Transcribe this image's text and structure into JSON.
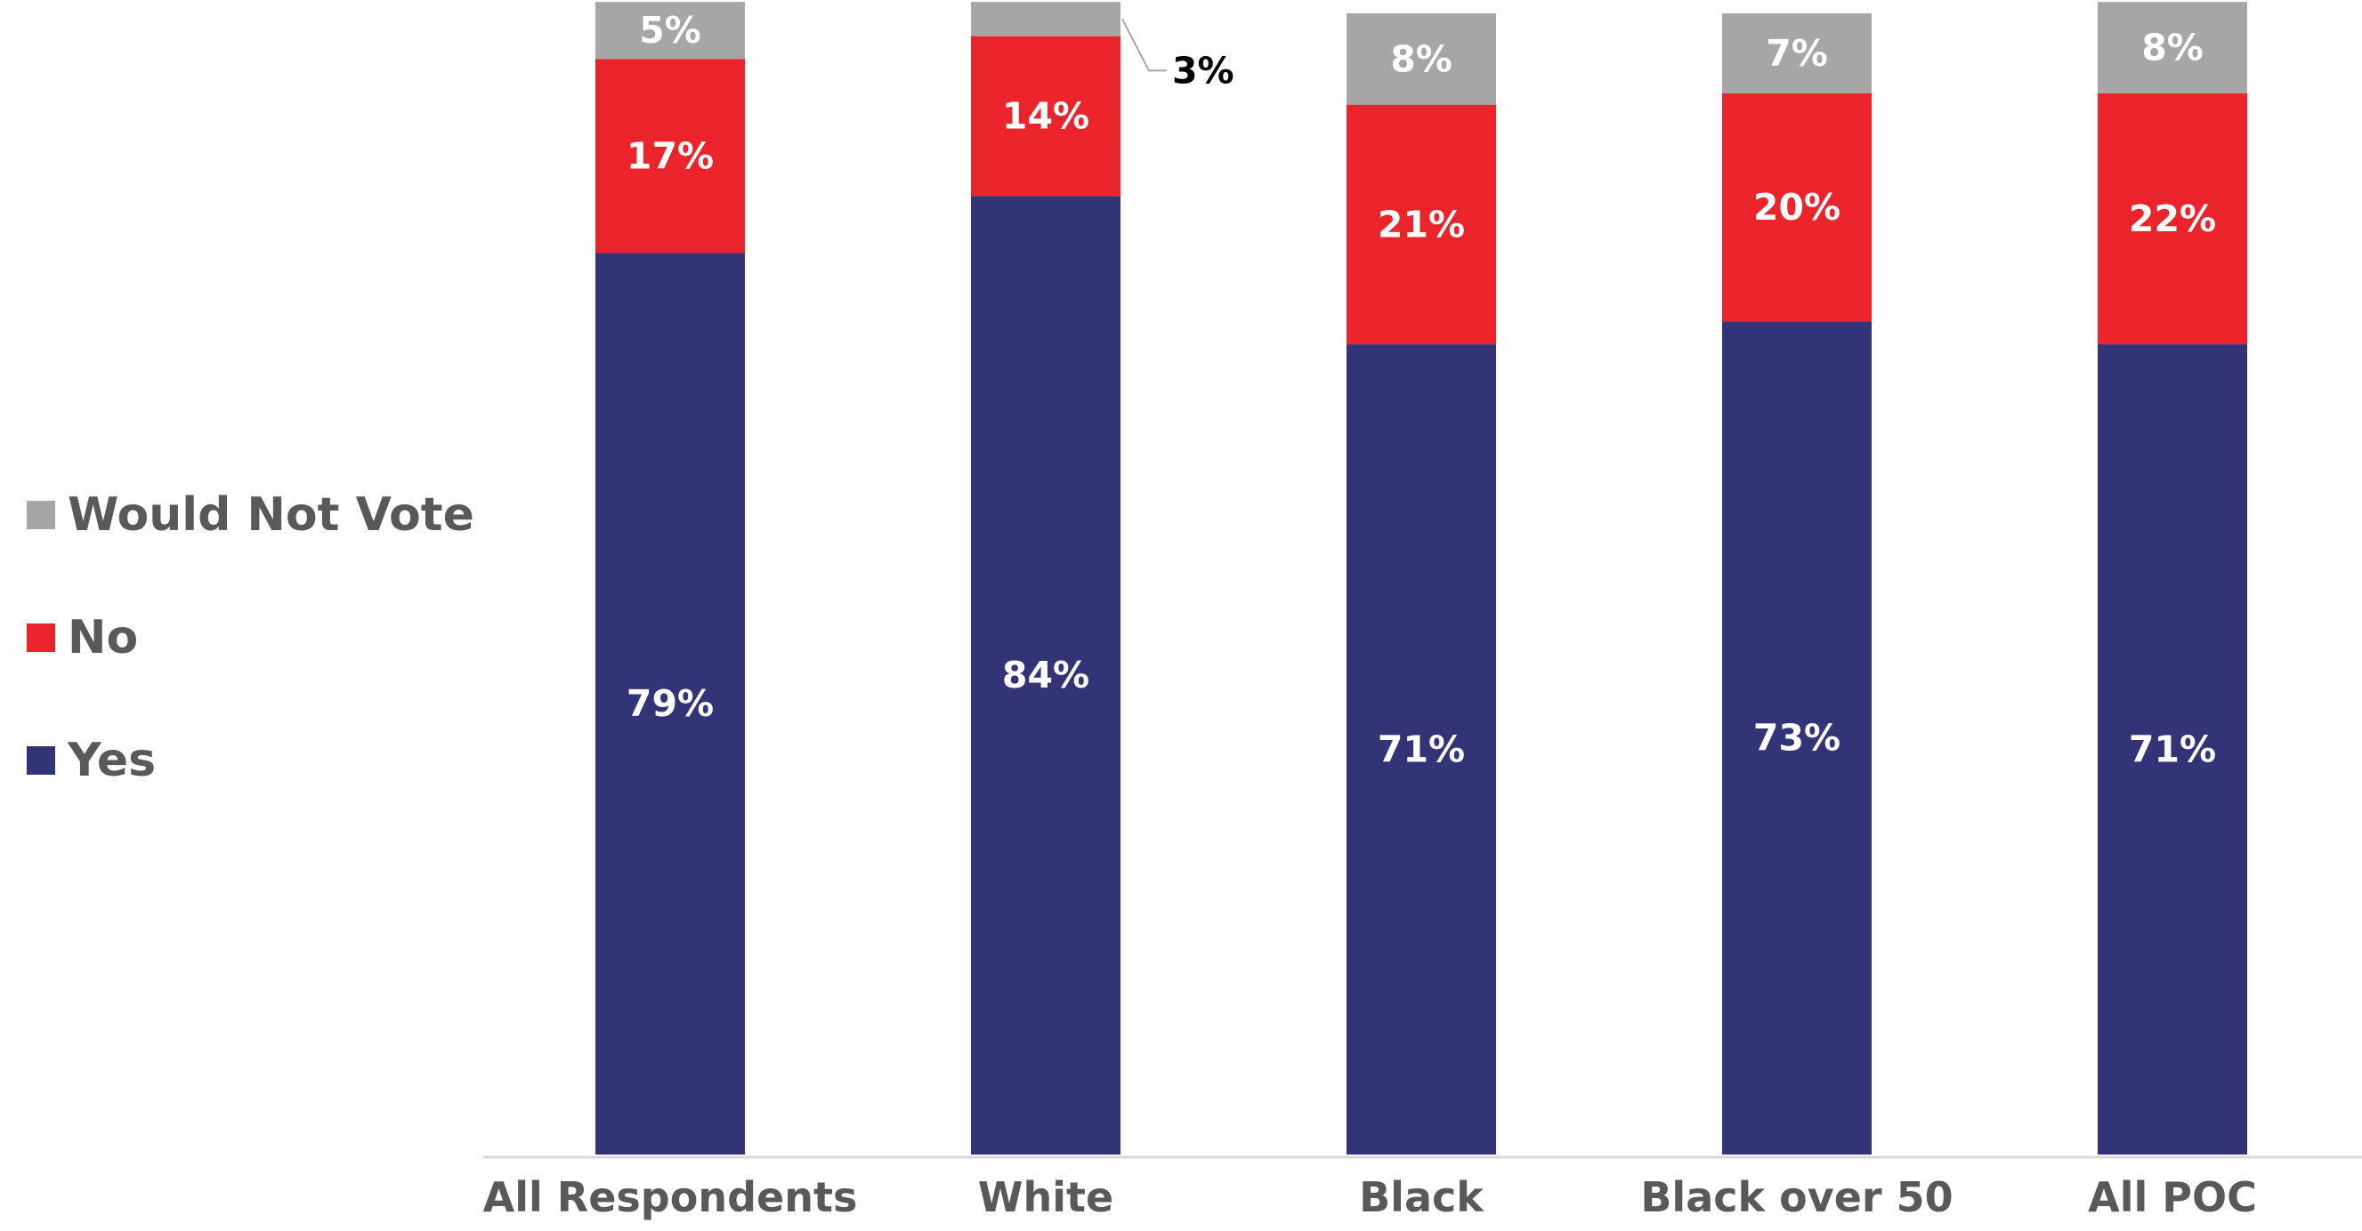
{
  "chart_data": {
    "type": "bar",
    "stacked": true,
    "categories": [
      "All Respondents",
      "White",
      "Black",
      "Black over 50",
      "All POC"
    ],
    "series": [
      {
        "name": "Yes",
        "values": [
          79,
          84,
          71,
          73,
          71
        ],
        "labels": [
          "79%",
          "84%",
          "71%",
          "73%",
          "71%"
        ],
        "color": "#333378"
      },
      {
        "name": "No",
        "values": [
          17,
          14,
          21,
          20,
          22
        ],
        "labels": [
          "17%",
          "14%",
          "21%",
          "20%",
          "22%"
        ],
        "color": "#EB242B"
      },
      {
        "name": "Would Not Vote",
        "values": [
          5,
          3,
          8,
          7,
          8
        ],
        "labels": [
          "5%",
          "3%",
          "8%",
          "7%",
          "8%"
        ],
        "color": "#A6A6A6"
      }
    ],
    "legend": {
      "position": "left",
      "order": [
        "Would Not Vote",
        "No",
        "Yes"
      ]
    },
    "callout": {
      "category": "White",
      "series": "Would Not Vote",
      "label": "3%"
    },
    "ylim": [
      0,
      100
    ],
    "grid": false,
    "axis_line_color": "#D9D9D9",
    "title": "",
    "xlabel": "",
    "ylabel": ""
  }
}
